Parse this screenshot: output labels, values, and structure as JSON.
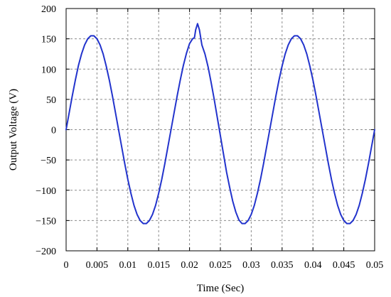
{
  "chart_data": {
    "type": "line",
    "title": "",
    "xlabel": "Time (Sec)",
    "ylabel": "Output Voltage (V)",
    "xlim": [
      0,
      0.05
    ],
    "ylim": [
      -200,
      200
    ],
    "grid": true,
    "x_ticks": [
      {
        "value": 0,
        "label": "0"
      },
      {
        "value": 0.005,
        "label": "0.005"
      },
      {
        "value": 0.01,
        "label": "0.01"
      },
      {
        "value": 0.015,
        "label": "0.015"
      },
      {
        "value": 0.02,
        "label": "0.02"
      },
      {
        "value": 0.025,
        "label": "0.025"
      },
      {
        "value": 0.03,
        "label": "0.03"
      },
      {
        "value": 0.035,
        "label": "0.035"
      },
      {
        "value": 0.04,
        "label": "0.04"
      },
      {
        "value": 0.045,
        "label": "0.045"
      },
      {
        "value": 0.05,
        "label": "0.05"
      }
    ],
    "y_ticks": [
      {
        "value": 200,
        "label": "200"
      },
      {
        "value": 150,
        "label": "150"
      },
      {
        "value": 100,
        "label": "100"
      },
      {
        "value": 50,
        "label": "50"
      },
      {
        "value": 0,
        "label": "0"
      },
      {
        "value": -50,
        "label": "−50"
      },
      {
        "value": -100,
        "label": "−100"
      },
      {
        "value": -150,
        "label": "−150"
      },
      {
        "value": -200,
        "label": "−200"
      }
    ],
    "series": [
      {
        "color": "#2233cc",
        "x": [
          0,
          0.0005,
          0.001,
          0.0015,
          0.002,
          0.0025,
          0.003,
          0.0035,
          0.004,
          0.0045,
          0.005,
          0.0055,
          0.006,
          0.0065,
          0.007,
          0.0075,
          0.008,
          0.0085,
          0.009,
          0.0095,
          0.01,
          0.0105,
          0.011,
          0.0115,
          0.012,
          0.0125,
          0.013,
          0.0135,
          0.014,
          0.0145,
          0.015,
          0.0155,
          0.016,
          0.0165,
          0.017,
          0.0175,
          0.018,
          0.0185,
          0.019,
          0.0195,
          0.02,
          0.0205,
          0.0208,
          0.021,
          0.0213,
          0.0216,
          0.022,
          0.0225,
          0.023,
          0.0235,
          0.024,
          0.0245,
          0.025,
          0.0255,
          0.026,
          0.0265,
          0.027,
          0.0275,
          0.028,
          0.0285,
          0.029,
          0.0295,
          0.03,
          0.0305,
          0.031,
          0.0315,
          0.032,
          0.0325,
          0.033,
          0.0335,
          0.034,
          0.0345,
          0.035,
          0.0355,
          0.036,
          0.0365,
          0.037,
          0.0375,
          0.038,
          0.0385,
          0.039,
          0.0395,
          0.04,
          0.0405,
          0.041,
          0.0415,
          0.042,
          0.0425,
          0.043,
          0.0435,
          0.044,
          0.0445,
          0.045,
          0.0455,
          0.046,
          0.0465,
          0.047,
          0.0475,
          0.048,
          0.0485,
          0.049,
          0.0495,
          0.05
        ],
        "y": [
          0,
          28,
          56,
          82,
          106,
          125,
          140,
          150,
          155,
          155,
          150,
          140,
          125,
          105,
          82,
          56,
          28,
          0,
          -28,
          -56,
          -82,
          -105,
          -125,
          -140,
          -150,
          -155,
          -155,
          -150,
          -140,
          -125,
          -105,
          -82,
          -56,
          -28,
          0,
          28,
          56,
          82,
          106,
          126,
          142,
          150,
          152,
          165,
          175,
          165,
          140,
          125,
          104,
          78,
          50,
          20,
          -10,
          -40,
          -70,
          -95,
          -118,
          -136,
          -149,
          -155,
          -155,
          -150,
          -140,
          -125,
          -105,
          -82,
          -56,
          -28,
          0,
          28,
          56,
          82,
          105,
          125,
          140,
          150,
          155,
          155,
          150,
          140,
          125,
          105,
          82,
          56,
          28,
          0,
          -28,
          -56,
          -82,
          -105,
          -125,
          -140,
          -150,
          -155,
          -155,
          -150,
          -140,
          -125,
          -105,
          -82,
          -56,
          -28,
          0
        ]
      }
    ]
  }
}
